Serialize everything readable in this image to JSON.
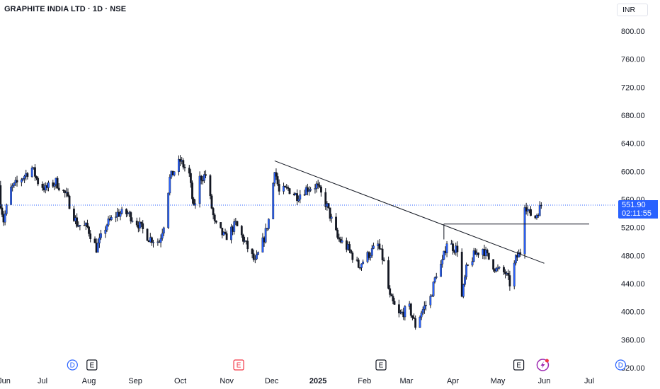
{
  "symbol_title": "GRAPHITE INDIA LTD · 1D · NSE",
  "currency": "INR",
  "last_price": {
    "value": "551.90",
    "countdown": "02:11:55"
  },
  "colors": {
    "up": "#2962ff",
    "down": "#131722",
    "price_line": "#2962ff",
    "event_red": "#f23645"
  },
  "chart_data": {
    "type": "candlestick",
    "title": "GRAPHITE INDIA LTD · 1D · NSE",
    "y_axis": {
      "range": [
        320,
        820
      ],
      "ticks": [
        "800.00",
        "760.00",
        "720.00",
        "680.00",
        "640.00",
        "600.00",
        "560.00",
        "520.00",
        "480.00",
        "440.00",
        "400.00",
        "360.00",
        "320.00"
      ]
    },
    "x_axis": {
      "ticks": [
        {
          "label": "Jun",
          "date": "2024-06-01",
          "bold": false
        },
        {
          "label": "Jul",
          "date": "2024-07-01",
          "bold": false
        },
        {
          "label": "Aug",
          "date": "2024-08-01",
          "bold": false
        },
        {
          "label": "Sep",
          "date": "2024-09-01",
          "bold": false
        },
        {
          "label": "Oct",
          "date": "2024-10-01",
          "bold": false
        },
        {
          "label": "Nov",
          "date": "2024-11-01",
          "bold": false
        },
        {
          "label": "Dec",
          "date": "2024-12-01",
          "bold": false
        },
        {
          "label": "2025",
          "date": "2025-01-01",
          "bold": true
        },
        {
          "label": "Feb",
          "date": "2025-02-01",
          "bold": false
        },
        {
          "label": "Mar",
          "date": "2025-03-01",
          "bold": false
        },
        {
          "label": "Apr",
          "date": "2025-04-01",
          "bold": false
        },
        {
          "label": "May",
          "date": "2025-05-01",
          "bold": false
        },
        {
          "label": "Jun",
          "date": "2025-06-01",
          "bold": false
        },
        {
          "label": "Jul",
          "date": "2025-07-01",
          "bold": false
        }
      ]
    },
    "price_path": [
      [
        "2024-06-01",
        580
      ],
      [
        "2024-06-05",
        530
      ],
      [
        "2024-06-10",
        575
      ],
      [
        "2024-06-17",
        590
      ],
      [
        "2024-06-24",
        605
      ],
      [
        "2024-06-28",
        585
      ],
      [
        "2024-07-03",
        575
      ],
      [
        "2024-07-10",
        585
      ],
      [
        "2024-07-17",
        565
      ],
      [
        "2024-07-24",
        525
      ],
      [
        "2024-07-31",
        520
      ],
      [
        "2024-08-06",
        490
      ],
      [
        "2024-08-13",
        525
      ],
      [
        "2024-08-20",
        540
      ],
      [
        "2024-08-27",
        540
      ],
      [
        "2024-09-03",
        525
      ],
      [
        "2024-09-10",
        505
      ],
      [
        "2024-09-17",
        500
      ],
      [
        "2024-09-20",
        525
      ],
      [
        "2024-09-24",
        590
      ],
      [
        "2024-10-01",
        615
      ],
      [
        "2024-10-07",
        595
      ],
      [
        "2024-10-10",
        545
      ],
      [
        "2024-10-14",
        590
      ],
      [
        "2024-10-18",
        595
      ],
      [
        "2024-10-24",
        525
      ],
      [
        "2024-10-31",
        505
      ],
      [
        "2024-11-07",
        525
      ],
      [
        "2024-11-14",
        495
      ],
      [
        "2024-11-20",
        470
      ],
      [
        "2024-11-26",
        505
      ],
      [
        "2024-11-30",
        540
      ],
      [
        "2024-12-03",
        605
      ],
      [
        "2024-12-06",
        570
      ],
      [
        "2024-12-12",
        575
      ],
      [
        "2024-12-18",
        565
      ],
      [
        "2024-12-24",
        575
      ],
      [
        "2024-12-31",
        580
      ],
      [
        "2025-01-07",
        550
      ],
      [
        "2025-01-14",
        505
      ],
      [
        "2025-01-21",
        490
      ],
      [
        "2025-01-28",
        465
      ],
      [
        "2025-02-03",
        480
      ],
      [
        "2025-02-10",
        495
      ],
      [
        "2025-02-14",
        470
      ],
      [
        "2025-02-18",
        420
      ],
      [
        "2025-02-24",
        395
      ],
      [
        "2025-03-03",
        405
      ],
      [
        "2025-03-07",
        380
      ],
      [
        "2025-03-11",
        400
      ],
      [
        "2025-03-17",
        420
      ],
      [
        "2025-03-21",
        455
      ],
      [
        "2025-03-25",
        470
      ],
      [
        "2025-03-28",
        500
      ],
      [
        "2025-04-02",
        490
      ],
      [
        "2025-04-04",
        490
      ],
      [
        "2025-04-07",
        420
      ],
      [
        "2025-04-10",
        460
      ],
      [
        "2025-04-15",
        480
      ],
      [
        "2025-04-21",
        490
      ],
      [
        "2025-04-25",
        475
      ],
      [
        "2025-04-30",
        460
      ],
      [
        "2025-05-06",
        455
      ],
      [
        "2025-05-09",
        440
      ],
      [
        "2025-05-13",
        475
      ],
      [
        "2025-05-16",
        485
      ],
      [
        "2025-05-19",
        555
      ],
      [
        "2025-05-22",
        540
      ],
      [
        "2025-05-26",
        535
      ],
      [
        "2025-05-30",
        552
      ]
    ],
    "drawings": [
      {
        "type": "trend_line",
        "from": [
          "2024-12-03",
          615
        ],
        "to": [
          "2025-06-01",
          469
        ]
      },
      {
        "type": "horizontal_ray",
        "from": [
          "2025-03-26",
          525
        ],
        "to": [
          "2025-07-01",
          525
        ]
      },
      {
        "type": "vertical_segment",
        "from": [
          "2025-03-26",
          503
        ],
        "to": [
          "2025-03-26",
          525
        ]
      }
    ],
    "last_price_line": 551.9,
    "events": [
      {
        "date": "2024-07-21",
        "icon": "dividend-icon",
        "label": "D",
        "color": "#2962ff"
      },
      {
        "date": "2024-08-03",
        "icon": "earnings-icon",
        "label": "E",
        "color": "#131722"
      },
      {
        "date": "2024-11-09",
        "icon": "earnings-icon",
        "label": "E",
        "color": "#f23645"
      },
      {
        "date": "2025-02-12",
        "icon": "earnings-icon",
        "label": "E",
        "color": "#131722"
      },
      {
        "date": "2025-05-15",
        "icon": "earnings-icon",
        "label": "E",
        "color": "#131722"
      },
      {
        "date": "2025-05-31",
        "icon": "flash-event-icon",
        "label": "",
        "color": "#9c27b0"
      },
      {
        "date": "2025-07-22",
        "icon": "dividend-icon",
        "label": "D",
        "color": "#2962ff"
      }
    ]
  }
}
